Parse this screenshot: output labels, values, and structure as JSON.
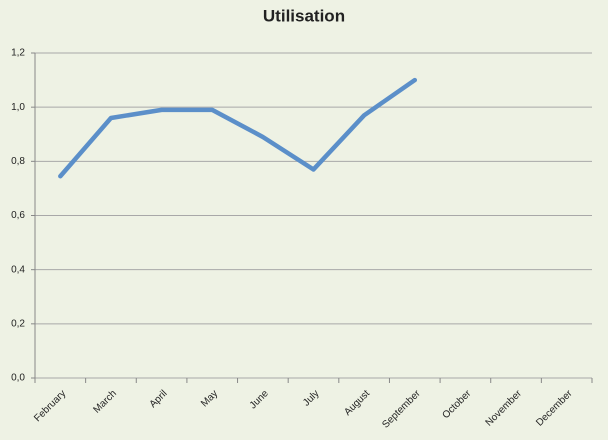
{
  "chart_data": {
    "type": "line",
    "title": "Utilisation",
    "categories": [
      "February",
      "March",
      "April",
      "May",
      "June",
      "July",
      "August",
      "September",
      "October",
      "November",
      "December"
    ],
    "series": [
      {
        "name": "Utilisation",
        "color": "#5b8fc9",
        "values": [
          0.745,
          0.96,
          0.99,
          0.99,
          0.89,
          0.77,
          0.97,
          1.1,
          null,
          null,
          null
        ]
      }
    ],
    "ylim": [
      0,
      1.2
    ],
    "yticks": [
      {
        "value": 0,
        "label": "0,0"
      },
      {
        "value": 0.2,
        "label": "0,2"
      },
      {
        "value": 0.4,
        "label": "0,4"
      },
      {
        "value": 0.6,
        "label": "0,6"
      },
      {
        "value": 0.8,
        "label": "0,8"
      },
      {
        "value": 1.0,
        "label": "1,0"
      },
      {
        "value": 1.2,
        "label": "1,2"
      }
    ],
    "grid": true
  }
}
